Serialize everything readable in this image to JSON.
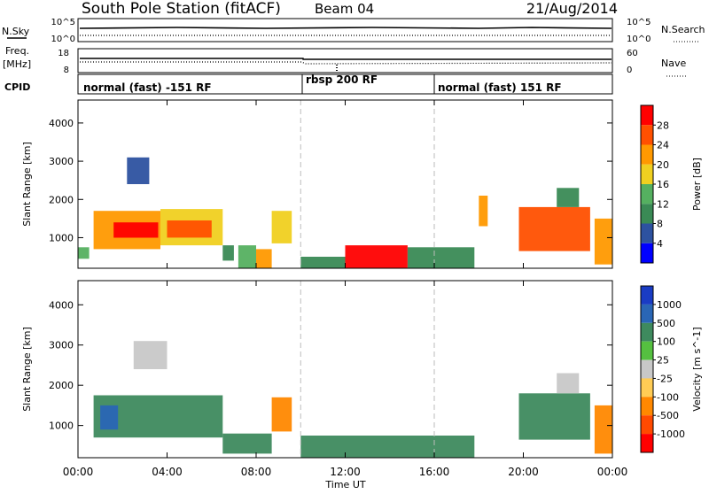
{
  "header": {
    "station": "South Pole Station (fitACF)",
    "beam": "Beam 04",
    "date": "21/Aug/2014"
  },
  "top_panel": {
    "left_label": "N.Sky",
    "left_ticks": [
      "10^5",
      "10^0"
    ],
    "right_ticks": [
      "10^5",
      "10^0"
    ],
    "right_label": "N.Search"
  },
  "freq_panel": {
    "left_label_1": "Freq.",
    "left_label_2": "[MHz]",
    "left_ticks": [
      "18",
      "8"
    ],
    "right_ticks": [
      "60",
      "0"
    ],
    "right_label": "Nave"
  },
  "cpid": {
    "label": "CPID",
    "segments": [
      "normal (fast) -151 RF",
      "rbsp 200 RF",
      "normal (fast) 151 RF"
    ]
  },
  "axes": {
    "ylabel": "Slant Range [km]",
    "xlabel": "Time UT",
    "y_ticks": [
      "1000",
      "2000",
      "3000",
      "4000"
    ],
    "x_ticks": [
      "00:00",
      "04:00",
      "08:00",
      "12:00",
      "16:00",
      "20:00",
      "00:00"
    ]
  },
  "colors": {
    "power": [
      "#0000ff",
      "#2d52a0",
      "#3a8a55",
      "#55b060",
      "#f0d020",
      "#ff9900",
      "#ff5000",
      "#ff0000"
    ],
    "velocity": [
      "#ff0000",
      "#ff4a00",
      "#ff8800",
      "#ffcc55",
      "#c8c8c8",
      "#55c040",
      "#3e8a5e",
      "#2a66b5",
      "#1a3cc4"
    ]
  },
  "chart_data": [
    {
      "type": "heatmap",
      "title": "Power",
      "xlabel": "Time UT",
      "ylabel": "Slant Range [km]",
      "colorbar_label": "Power [dB]",
      "colorbar_ticks": [
        "4",
        "8",
        "12",
        "16",
        "20",
        "24",
        "28"
      ],
      "xlim": [
        "00:00",
        "24:00"
      ],
      "ylim": [
        200,
        4600
      ],
      "regions": [
        {
          "t0": 0.0,
          "t1": 0.5,
          "r0": 450,
          "r1": 750,
          "value": 14
        },
        {
          "t0": 0.7,
          "t1": 3.7,
          "r0": 700,
          "r1": 1700,
          "value": 20
        },
        {
          "t0": 1.6,
          "t1": 3.6,
          "r0": 1000,
          "r1": 1400,
          "value": 28
        },
        {
          "t0": 3.7,
          "t1": 6.5,
          "r0": 800,
          "r1": 1750,
          "value": 18
        },
        {
          "t0": 4.0,
          "t1": 6.0,
          "r0": 1000,
          "r1": 1450,
          "value": 26
        },
        {
          "t0": 6.5,
          "t1": 7.0,
          "r0": 400,
          "r1": 800,
          "value": 10
        },
        {
          "t0": 7.2,
          "t1": 8.0,
          "r0": 200,
          "r1": 800,
          "value": 12
        },
        {
          "t0": 8.0,
          "t1": 8.7,
          "r0": 200,
          "r1": 700,
          "value": 22
        },
        {
          "t0": 8.7,
          "t1": 9.6,
          "r0": 850,
          "r1": 1700,
          "value": 18
        },
        {
          "t0": 10.0,
          "t1": 12.0,
          "r0": 200,
          "r1": 500,
          "value": 10
        },
        {
          "t0": 12.0,
          "t1": 14.8,
          "r0": 200,
          "r1": 800,
          "value": 28
        },
        {
          "t0": 14.8,
          "t1": 17.8,
          "r0": 200,
          "r1": 750,
          "value": 8
        },
        {
          "t0": 18.0,
          "t1": 18.4,
          "r0": 1300,
          "r1": 2100,
          "value": 20
        },
        {
          "t0": 19.8,
          "t1": 23.0,
          "r0": 650,
          "r1": 1800,
          "value": 26
        },
        {
          "t0": 23.2,
          "t1": 24.0,
          "r0": 300,
          "r1": 1500,
          "value": 22
        },
        {
          "t0": 2.2,
          "t1": 3.2,
          "r0": 2400,
          "r1": 3100,
          "value": 6
        },
        {
          "t0": 21.5,
          "t1": 22.5,
          "r0": 1800,
          "r1": 2300,
          "value": 8
        }
      ]
    },
    {
      "type": "heatmap",
      "title": "Velocity",
      "xlabel": "Time UT",
      "ylabel": "Slant Range [km]",
      "colorbar_label": "Velocity [m s^-1]",
      "colorbar_ticks": [
        "1000",
        "500",
        "100",
        "25",
        "-25",
        "-100",
        "-500",
        "-1000"
      ],
      "xlim": [
        "00:00",
        "24:00"
      ],
      "ylim": [
        200,
        4600
      ],
      "regions": [
        {
          "t0": 0.7,
          "t1": 6.5,
          "r0": 700,
          "r1": 1750,
          "value": 150
        },
        {
          "t0": 1.0,
          "t1": 1.8,
          "r0": 900,
          "r1": 1500,
          "value": 600
        },
        {
          "t0": 6.5,
          "t1": 8.7,
          "r0": 300,
          "r1": 800,
          "value": 150
        },
        {
          "t0": 8.7,
          "t1": 9.6,
          "r0": 850,
          "r1": 1700,
          "value": -300
        },
        {
          "t0": 10.0,
          "t1": 17.8,
          "r0": 200,
          "r1": 750,
          "value": 150
        },
        {
          "t0": 19.8,
          "t1": 23.0,
          "r0": 650,
          "r1": 1800,
          "value": 150
        },
        {
          "t0": 23.2,
          "t1": 24.0,
          "r0": 300,
          "r1": 1500,
          "value": -300
        },
        {
          "t0": 2.5,
          "t1": 4.0,
          "r0": 2400,
          "r1": 3100,
          "value": 0
        },
        {
          "t0": 21.5,
          "t1": 22.5,
          "r0": 1800,
          "r1": 2300,
          "value": 0
        }
      ]
    }
  ]
}
